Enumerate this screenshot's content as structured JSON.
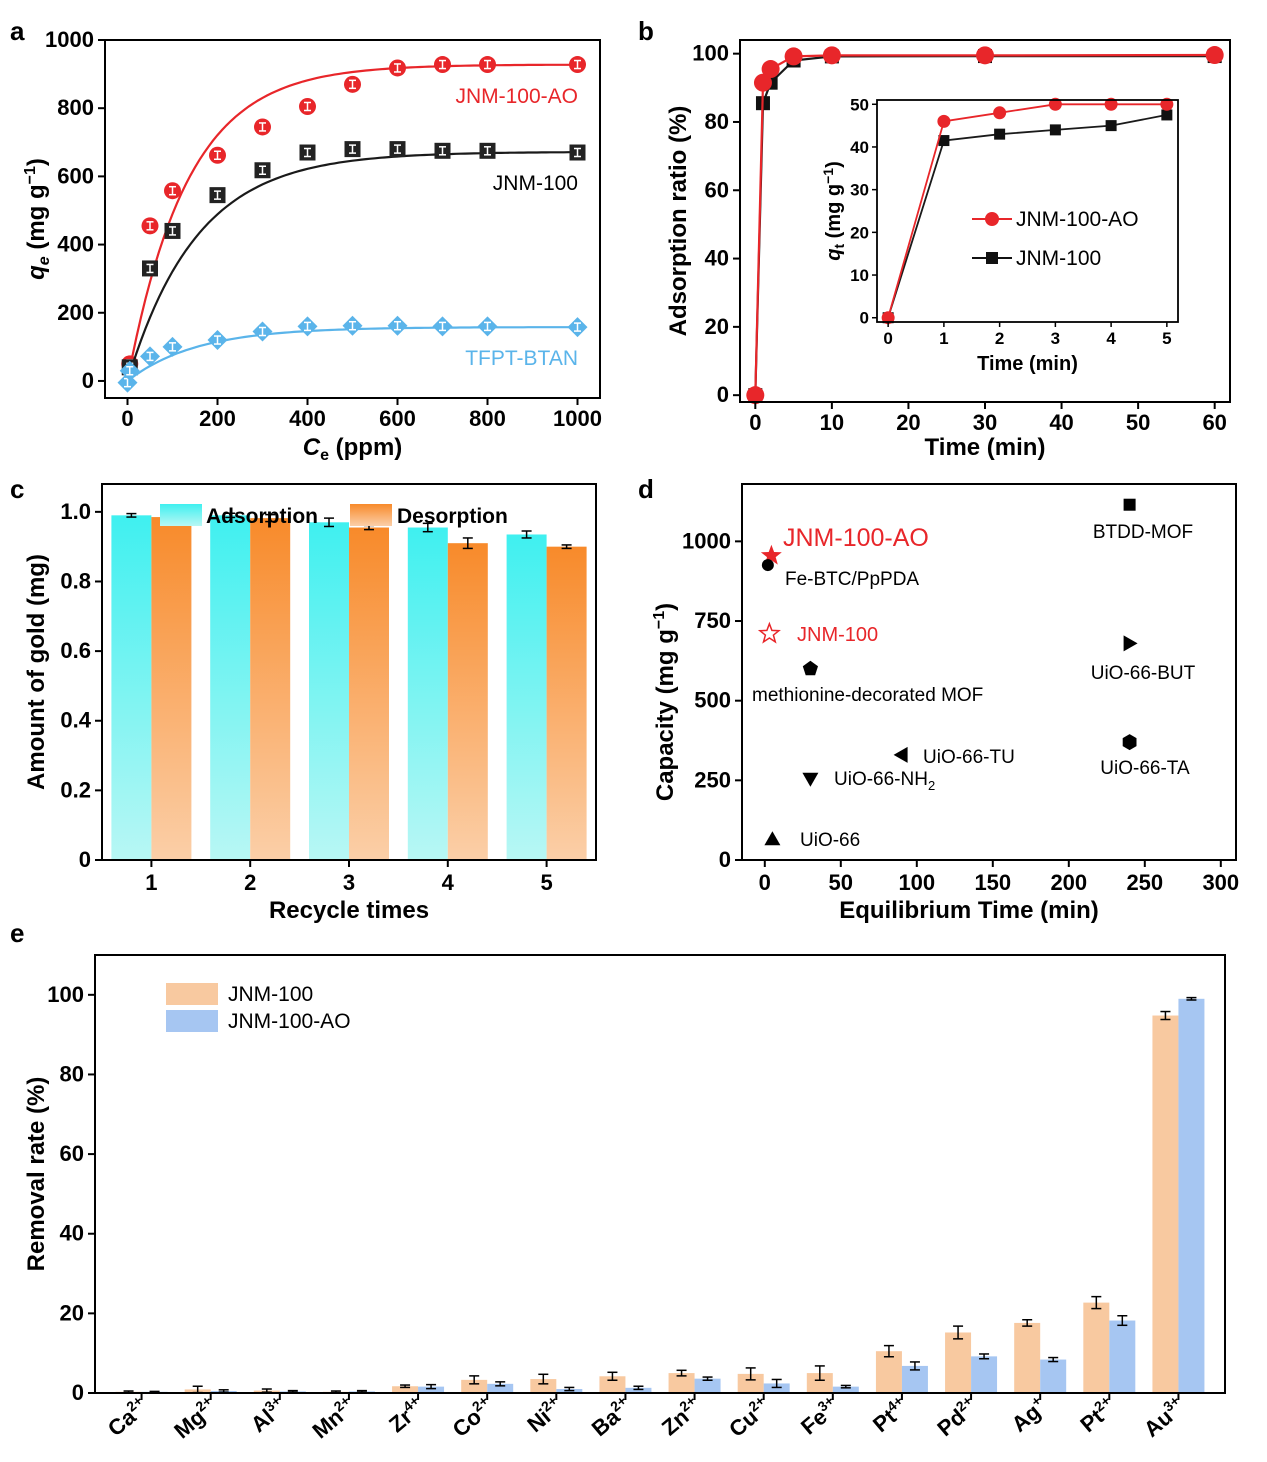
{
  "chart_data": [
    {
      "panel": "a",
      "type": "scatter",
      "xlabel_main": "C",
      "xlabel_sub": "e",
      "xlabel_unit": " (ppm)",
      "ylabel_main": "q",
      "ylabel_sub": "e",
      "ylabel_unit": " (mg g",
      "ylabel_sup": "−1",
      "ylabel_close": ")",
      "xlim": [
        -50,
        1050
      ],
      "ylim": [
        -50,
        1000
      ],
      "xticks": [
        0,
        200,
        400,
        600,
        800,
        1000
      ],
      "yticks": [
        0,
        200,
        400,
        600,
        800,
        1000
      ],
      "series": [
        {
          "name": "JNM-100-AO",
          "color": "#e8262a",
          "x": [
            5,
            50,
            100,
            200,
            300,
            400,
            500,
            600,
            700,
            800,
            1000
          ],
          "y": [
            50,
            455,
            558,
            662,
            745,
            805,
            870,
            918,
            928,
            928,
            928
          ],
          "fit": {
            "qmax": 928,
            "k": 0.0075
          }
        },
        {
          "name": "JNM-100",
          "color": "#1a1a1a",
          "x": [
            5,
            50,
            100,
            200,
            300,
            400,
            500,
            600,
            700,
            800,
            1000
          ],
          "y": [
            40,
            330,
            440,
            545,
            618,
            670,
            680,
            680,
            675,
            675,
            670
          ],
          "fit": {
            "qmax": 672,
            "k": 0.0065
          }
        },
        {
          "name": "TFPT-BTAN",
          "color": "#5ab4ea",
          "x": [
            0,
            5,
            50,
            100,
            200,
            300,
            400,
            500,
            600,
            700,
            800,
            1000
          ],
          "y": [
            -5,
            30,
            72,
            100,
            120,
            145,
            160,
            162,
            162,
            160,
            160,
            158
          ],
          "fit": {
            "qmax": 158,
            "k": 0.0065
          }
        }
      ]
    },
    {
      "panel": "b",
      "type": "line",
      "xlabel": "Time (min)",
      "ylabel": "Adsorption ratio (%)",
      "xlim": [
        -2,
        62
      ],
      "ylim": [
        -2,
        104
      ],
      "xticks": [
        0,
        10,
        20,
        30,
        40,
        50,
        60
      ],
      "yticks": [
        0,
        20,
        40,
        60,
        80,
        100
      ],
      "series": [
        {
          "name": "JNM-100-AO",
          "color": "#e8262a",
          "x": [
            0,
            1,
            2,
            5,
            10,
            30,
            60
          ],
          "y": [
            0,
            91.5,
            95.5,
            99.2,
            99.5,
            99.5,
            99.6
          ]
        },
        {
          "name": "JNM-100",
          "color": "#1a1a1a",
          "x": [
            0,
            1,
            2,
            5,
            10,
            30,
            60
          ],
          "y": [
            0,
            85.5,
            91.5,
            98,
            99.2,
            99.3,
            99.3
          ]
        }
      ],
      "inset": {
        "xlabel": "Time (min)",
        "ylabel_main": "q",
        "ylabel_sub": "t",
        "ylabel_unit": " (mg g",
        "ylabel_sup": "−1",
        "ylabel_close": ")",
        "xlim": [
          -0.2,
          5.2
        ],
        "ylim": [
          -1,
          51
        ],
        "xticks": [
          0,
          1,
          2,
          3,
          4,
          5
        ],
        "yticks": [
          0,
          10,
          20,
          30,
          40,
          50
        ],
        "series": [
          {
            "name": "JNM-100-AO",
            "color": "#e8262a",
            "x": [
              0,
              1,
              2,
              3,
              4,
              5
            ],
            "y": [
              0,
              46,
              48,
              50,
              50,
              50
            ]
          },
          {
            "name": "JNM-100",
            "color": "#1a1a1a",
            "x": [
              0,
              1,
              2,
              3,
              4,
              5
            ],
            "y": [
              0,
              41.5,
              43,
              44,
              45,
              47.5
            ]
          }
        ]
      }
    },
    {
      "panel": "c",
      "type": "bar",
      "xlabel": "Recycle times",
      "ylabel": "Amount of gold (mg)",
      "ylim": [
        0,
        1.08
      ],
      "yticks": [
        0,
        0.2,
        0.4,
        0.6,
        0.8,
        1.0
      ],
      "ytick_labels": [
        "0",
        "0.2",
        "0.4",
        "0.6",
        "0.8",
        "1.0"
      ],
      "categories": [
        "1",
        "2",
        "3",
        "4",
        "5"
      ],
      "series": [
        {
          "name": "Adsorption",
          "values": [
            0.99,
            0.99,
            0.97,
            0.955,
            0.935
          ],
          "errors": [
            0.005,
            0.006,
            0.012,
            0.012,
            0.01
          ]
        },
        {
          "name": "Desorption",
          "values": [
            0.985,
            0.982,
            0.955,
            0.91,
            0.9
          ],
          "errors": [
            0.006,
            0.01,
            0.006,
            0.015,
            0.005
          ]
        }
      ]
    },
    {
      "panel": "d",
      "type": "scatter",
      "xlabel": "Equilibrium Time (min)",
      "ylabel_main": "Capacity (mg g",
      "ylabel_sup": "−1",
      "ylabel_close": ")",
      "xlim": [
        -15,
        310
      ],
      "ylim": [
        0,
        1180
      ],
      "xticks": [
        0,
        50,
        100,
        150,
        200,
        250,
        300
      ],
      "yticks": [
        0,
        250,
        500,
        750,
        1000
      ],
      "points": [
        {
          "label": "JNM-100-AO",
          "x": 3,
          "y": 955,
          "marker": "star",
          "color": "#e8262a"
        },
        {
          "label": "Fe-BTC/PpPDA",
          "x": 2,
          "y": 935,
          "marker": "circle",
          "color": "#000000"
        },
        {
          "label": "JNM-100",
          "x": 5,
          "y": 710,
          "marker": "star-open",
          "color": "#e8262a"
        },
        {
          "label": "methionine-decorated MOF",
          "x": 30,
          "y": 600,
          "marker": "pentagon",
          "color": "#000000"
        },
        {
          "label": "UiO-66-TU",
          "x": 90,
          "y": 330,
          "marker": "tri-left",
          "color": "#000000"
        },
        {
          "label": "UiO-66-NH",
          "label_sub": "2",
          "x": 30,
          "y": 255,
          "marker": "tri-down",
          "color": "#000000"
        },
        {
          "label": "UiO-66",
          "x": 5,
          "y": 65,
          "marker": "tri-up",
          "color": "#000000"
        },
        {
          "label": "BTDD-MOF",
          "x": 240,
          "y": 1115,
          "marker": "square",
          "color": "#000000"
        },
        {
          "label": "UiO-66-BUT",
          "x": 240,
          "y": 680,
          "marker": "tri-right",
          "color": "#000000"
        },
        {
          "label": "UiO-66-TA",
          "x": 240,
          "y": 370,
          "marker": "hexagon",
          "color": "#000000"
        }
      ]
    },
    {
      "panel": "e",
      "type": "bar",
      "ylabel": "Removal rate (%)",
      "ylim": [
        0,
        110
      ],
      "yticks": [
        0,
        20,
        40,
        60,
        80,
        100
      ],
      "categories": [
        {
          "base": "Ca",
          "sup": "2+"
        },
        {
          "base": "Mg",
          "sup": "2+"
        },
        {
          "base": "Al",
          "sup": "3+"
        },
        {
          "base": "Mn",
          "sup": "2+"
        },
        {
          "base": "Zr",
          "sup": "4+"
        },
        {
          "base": "Co",
          "sup": "2+"
        },
        {
          "base": "Ni",
          "sup": "2+"
        },
        {
          "base": "Ba",
          "sup": "2+"
        },
        {
          "base": "Zn",
          "sup": "2+"
        },
        {
          "base": "Cu",
          "sup": "2+"
        },
        {
          "base": "Fe",
          "sup": "3+"
        },
        {
          "base": "Pt",
          "sup": "4+"
        },
        {
          "base": "Pd",
          "sup": "2+"
        },
        {
          "base": "Ag",
          "sup": "+"
        },
        {
          "base": "Pt",
          "sup": "2+"
        },
        {
          "base": "Au",
          "sup": "3+"
        }
      ],
      "series": [
        {
          "name": "JNM-100",
          "color": "#f8c9a0",
          "values": [
            0.3,
            0.9,
            0.6,
            0.3,
            1.7,
            3.3,
            3.5,
            4.2,
            5.0,
            4.8,
            5.0,
            10.5,
            15.2,
            17.6,
            22.7,
            94.8
          ],
          "errors": [
            0.2,
            0.8,
            0.4,
            0.2,
            0.3,
            1.0,
            1.2,
            1.0,
            0.7,
            1.5,
            1.8,
            1.4,
            1.6,
            0.8,
            1.5,
            1.0
          ]
        },
        {
          "name": "JNM-100-AO",
          "color": "#a6c6f2",
          "values": [
            0.3,
            0.5,
            0.4,
            0.4,
            1.6,
            2.3,
            1.0,
            1.3,
            3.6,
            2.4,
            1.6,
            6.8,
            9.2,
            8.4,
            18.2,
            99.0
          ],
          "errors": [
            0.1,
            0.3,
            0.2,
            0.2,
            0.5,
            0.5,
            0.4,
            0.4,
            0.4,
            1.0,
            0.3,
            1.0,
            0.6,
            0.5,
            1.2,
            0.3
          ]
        }
      ]
    }
  ]
}
